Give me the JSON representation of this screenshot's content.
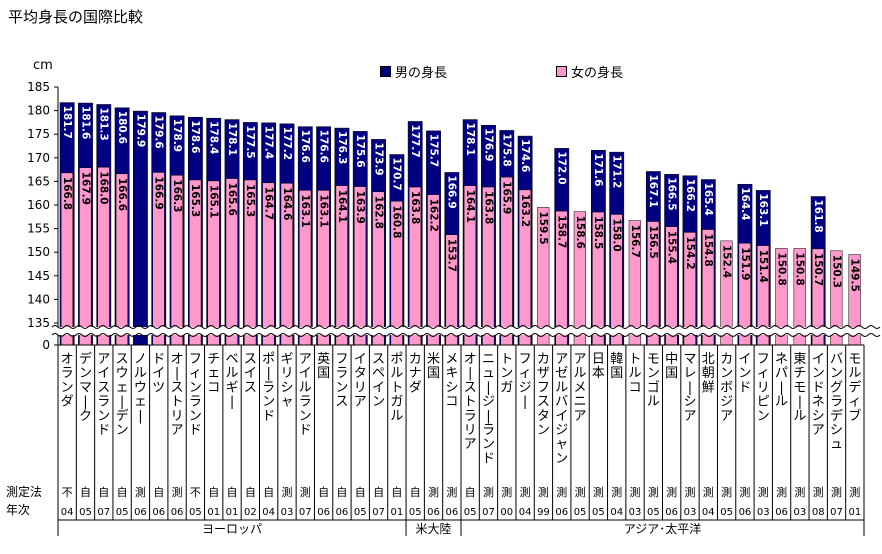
{
  "title": "平均身長の国際比較",
  "unit_label": "cm",
  "colors": {
    "male": "#000080",
    "female": "#FF99CC",
    "axis": "#000000",
    "label_text": "#ffffff"
  },
  "chart_data": {
    "type": "bar",
    "title": "平均身長の国際比較",
    "ylabel": "cm",
    "ylim": [
      135,
      185
    ],
    "axis_break": true,
    "y_ticks": [
      0,
      135,
      140,
      145,
      150,
      155,
      160,
      165,
      170,
      175,
      180,
      185
    ],
    "grid": false,
    "legend": "top",
    "series": [
      {
        "name": "男の身長",
        "values": [
          181.7,
          181.6,
          181.3,
          180.6,
          179.9,
          179.6,
          178.9,
          178.6,
          178.4,
          178.1,
          177.5,
          177.4,
          177.2,
          176.6,
          176.6,
          176.3,
          175.6,
          173.9,
          170.7,
          177.7,
          175.7,
          166.9,
          178.1,
          176.9,
          175.8,
          174.6,
          null,
          172.0,
          null,
          171.6,
          171.2,
          null,
          167.1,
          166.5,
          166.2,
          165.4,
          null,
          164.4,
          163.1,
          null,
          null,
          161.8,
          null,
          null
        ]
      },
      {
        "name": "女の身長",
        "values": [
          166.8,
          167.9,
          168.0,
          166.6,
          null,
          166.9,
          166.3,
          165.3,
          165.1,
          165.6,
          165.3,
          164.7,
          164.6,
          163.1,
          163.1,
          164.1,
          163.9,
          162.8,
          160.8,
          163.8,
          162.2,
          153.7,
          164.1,
          163.8,
          165.9,
          163.2,
          159.5,
          158.7,
          158.6,
          158.5,
          158.0,
          156.7,
          156.5,
          155.4,
          154.2,
          154.8,
          152.4,
          151.9,
          151.4,
          150.8,
          150.8,
          150.7,
          150.3,
          149.5
        ]
      }
    ],
    "categories": [
      "オランダ",
      "デンマーク",
      "アイスランド",
      "スウェーデン",
      "ノルウェー",
      "ドイツ",
      "オーストリア",
      "フィンランド",
      "チェコ",
      "ベルギー",
      "スイス",
      "ポーランド",
      "ギリシャ",
      "アイルランド",
      "英国",
      "フランス",
      "イタリア",
      "スペイン",
      "ポルトガル",
      "カナダ",
      "米国",
      "メキシコ",
      "オーストラリア",
      "ニュージーランド",
      "トンガ",
      "フィジー",
      "カザフスタン",
      "アゼルバイジャン",
      "アルメニア",
      "日本",
      "韓国",
      "トルコ",
      "モンゴル",
      "中国",
      "マレーシア",
      "北朝鮮",
      "カンボジア",
      "インド",
      "フィリピン",
      "ネパール",
      "東チモール",
      "インドネシア",
      "バングラデシュ",
      "モルディブ"
    ],
    "method_row_label": "測定法",
    "year_row_label": "年次",
    "methods": [
      "不",
      "自",
      "自",
      "自",
      "測",
      "自",
      "測",
      "不",
      "自",
      "自",
      "自",
      "自",
      "測",
      "測",
      "自",
      "自",
      "自",
      "自",
      "自",
      "自",
      "測",
      "測",
      "自",
      "測",
      "測",
      "測",
      "測",
      "測",
      "測",
      "測",
      "測",
      "測",
      "測",
      "測",
      "測",
      "測",
      "測",
      "測",
      "測",
      "測",
      "測",
      "測",
      "測",
      "測"
    ],
    "years": [
      "04",
      "05",
      "07",
      "05",
      "06",
      "06",
      "06",
      "05",
      "01",
      "01",
      "02",
      "04",
      "03",
      "07",
      "06",
      "06",
      "05",
      "07",
      "01",
      "05",
      "06",
      "06",
      "05",
      "07",
      "00",
      "04",
      "99",
      "06",
      "05",
      "05",
      "04",
      "03",
      "05",
      "06",
      "03",
      "04",
      "05",
      "06",
      "03",
      "06",
      "03",
      "08",
      "07",
      "01"
    ],
    "groups": [
      {
        "label": "ヨーロッパ",
        "start": 0,
        "end": 18
      },
      {
        "label": "米大陸",
        "start": 19,
        "end": 21
      },
      {
        "label": "アジア･太平洋",
        "start": 22,
        "end": 43
      }
    ]
  }
}
